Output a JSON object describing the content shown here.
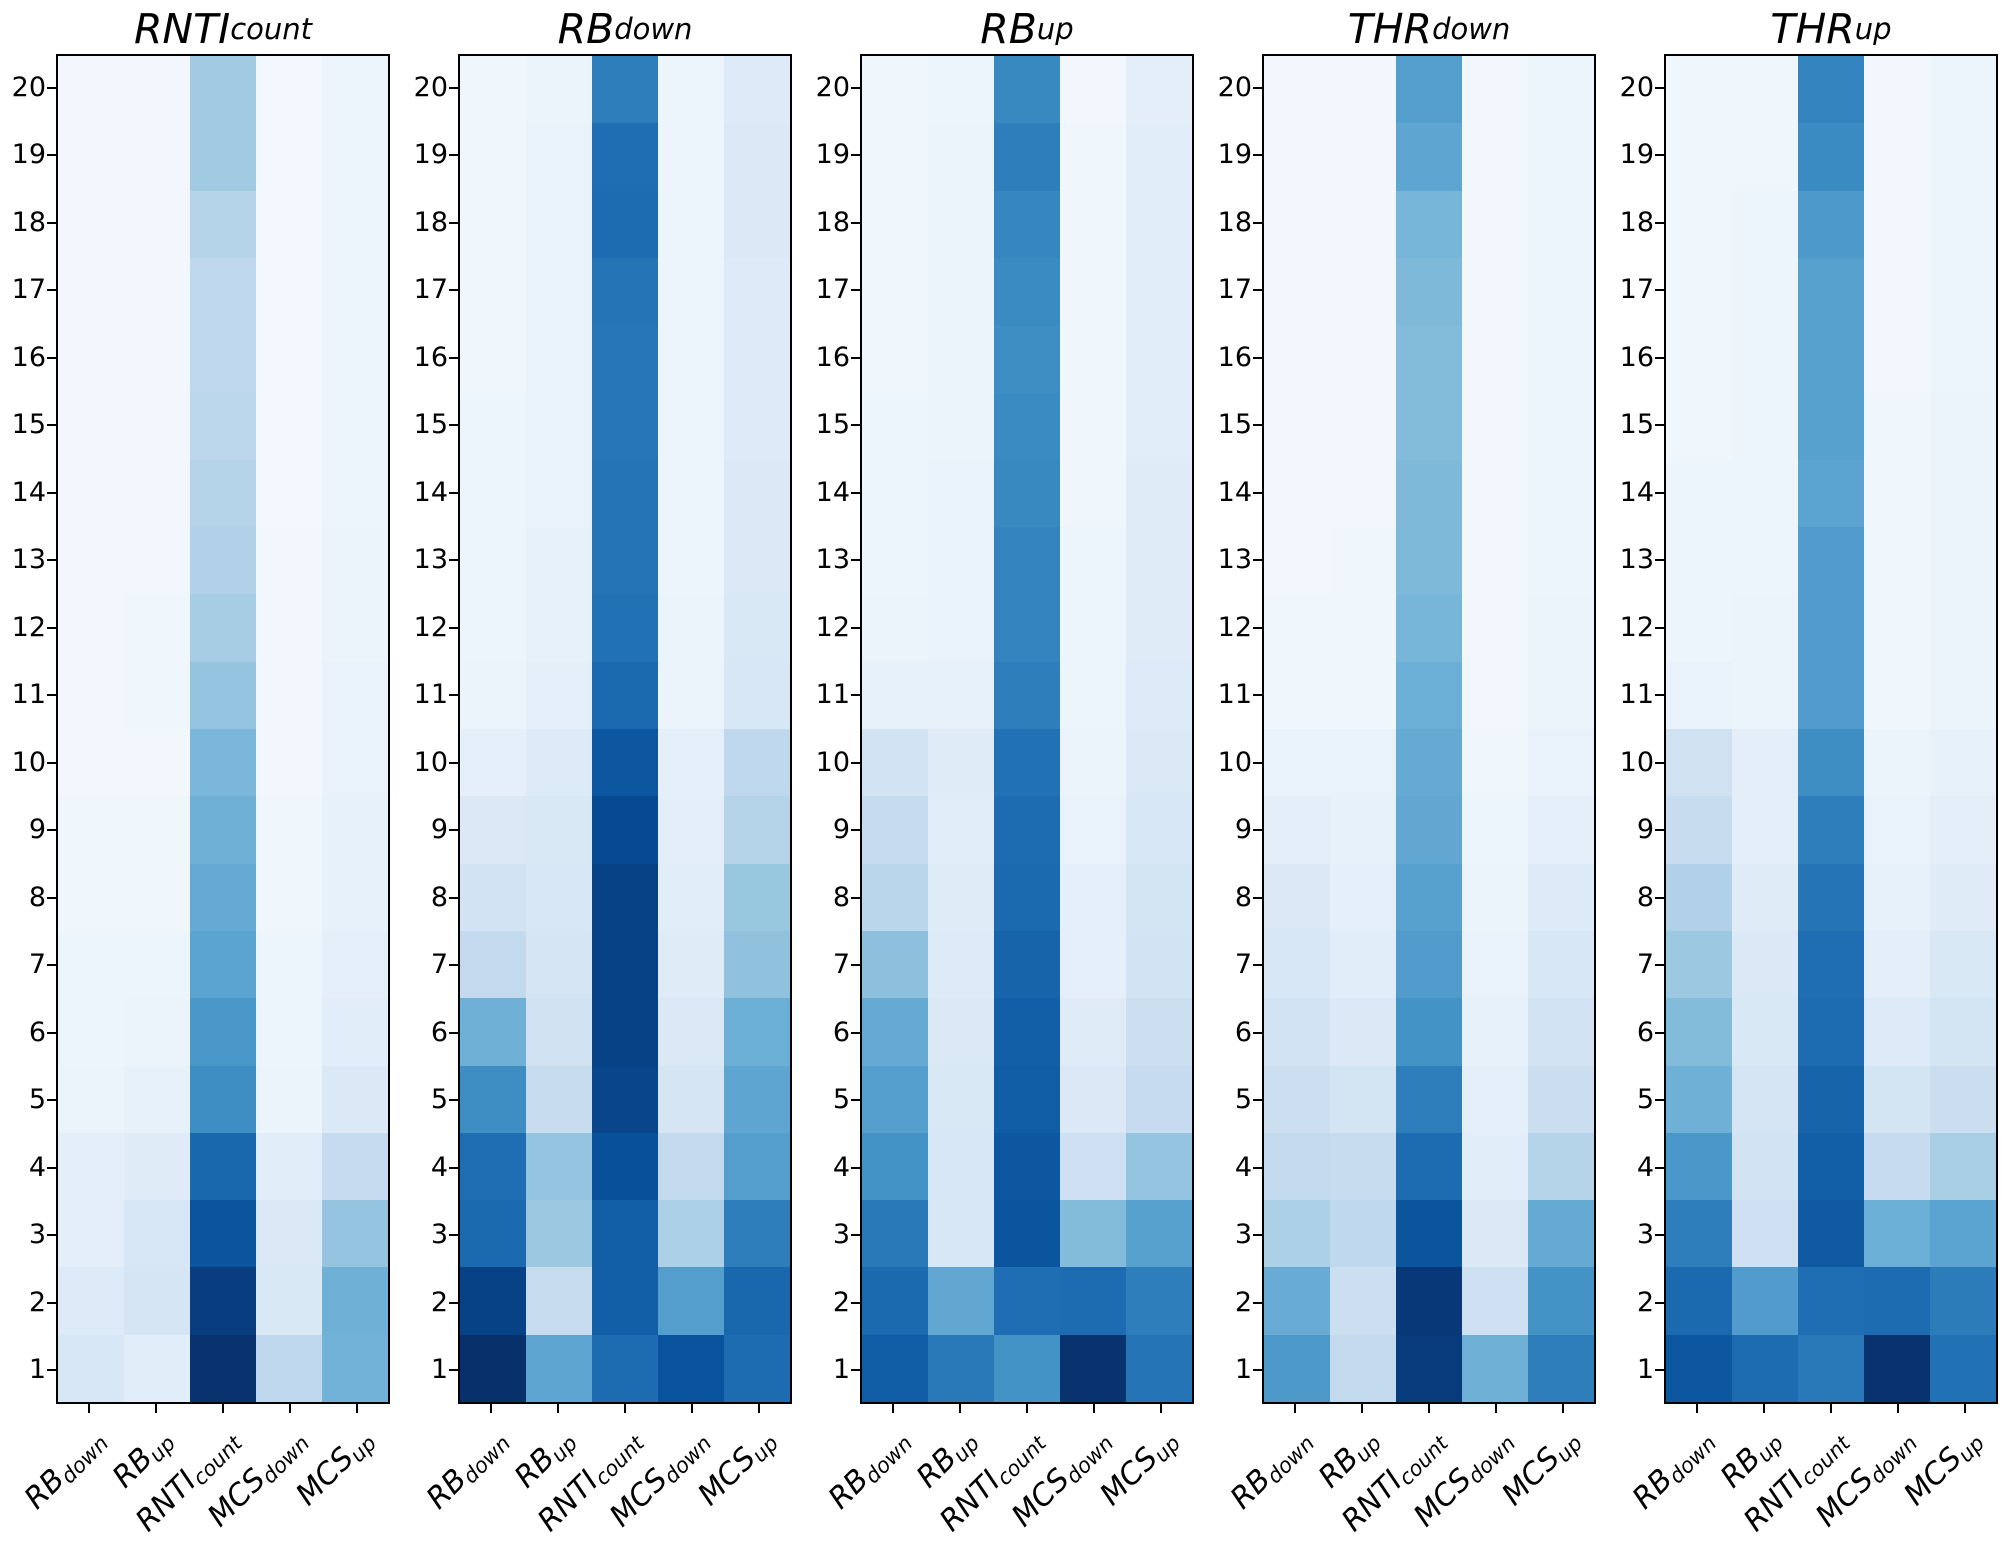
{
  "chart_data": {
    "type": "heatmap",
    "colormap": "Blues",
    "value_range": [
      0,
      1
    ],
    "grid": "off",
    "legend": "none",
    "y_axis_label": "",
    "x_axis_label": "",
    "y_categories": [
      20,
      19,
      18,
      17,
      16,
      15,
      14,
      13,
      12,
      11,
      10,
      9,
      8,
      7,
      6,
      5,
      4,
      3,
      2,
      1
    ],
    "x_categories": [
      {
        "main": "RB",
        "sub": "down"
      },
      {
        "main": "RB",
        "sub": "up"
      },
      {
        "main": "RNTI",
        "sub": "count"
      },
      {
        "main": "MCS",
        "sub": "down"
      },
      {
        "main": "MCS",
        "sub": "up"
      }
    ],
    "panels": [
      {
        "title": {
          "main": "RNTI",
          "sub": "count"
        },
        "rows": [
          [
            0.03,
            0.03,
            0.37,
            0.02,
            0.05
          ],
          [
            0.03,
            0.03,
            0.37,
            0.02,
            0.05
          ],
          [
            0.03,
            0.03,
            0.3,
            0.02,
            0.05
          ],
          [
            0.03,
            0.03,
            0.27,
            0.02,
            0.05
          ],
          [
            0.03,
            0.03,
            0.27,
            0.02,
            0.05
          ],
          [
            0.03,
            0.03,
            0.28,
            0.02,
            0.05
          ],
          [
            0.03,
            0.03,
            0.3,
            0.02,
            0.05
          ],
          [
            0.03,
            0.03,
            0.32,
            0.03,
            0.06
          ],
          [
            0.03,
            0.04,
            0.35,
            0.03,
            0.06
          ],
          [
            0.03,
            0.04,
            0.4,
            0.03,
            0.07
          ],
          [
            0.03,
            0.03,
            0.46,
            0.03,
            0.07
          ],
          [
            0.04,
            0.04,
            0.49,
            0.04,
            0.08
          ],
          [
            0.04,
            0.04,
            0.52,
            0.04,
            0.08
          ],
          [
            0.05,
            0.05,
            0.55,
            0.05,
            0.09
          ],
          [
            0.05,
            0.06,
            0.6,
            0.05,
            0.11
          ],
          [
            0.06,
            0.08,
            0.64,
            0.06,
            0.14
          ],
          [
            0.1,
            0.12,
            0.79,
            0.11,
            0.25
          ],
          [
            0.1,
            0.16,
            0.86,
            0.14,
            0.4
          ],
          [
            0.13,
            0.17,
            0.95,
            0.15,
            0.49
          ],
          [
            0.16,
            0.11,
            0.99,
            0.27,
            0.48
          ]
        ]
      },
      {
        "title": {
          "main": "RB",
          "sub": "down"
        },
        "rows": [
          [
            0.04,
            0.06,
            0.7,
            0.05,
            0.13
          ],
          [
            0.04,
            0.07,
            0.76,
            0.05,
            0.14
          ],
          [
            0.04,
            0.07,
            0.77,
            0.05,
            0.14
          ],
          [
            0.04,
            0.07,
            0.74,
            0.05,
            0.13
          ],
          [
            0.04,
            0.07,
            0.73,
            0.05,
            0.13
          ],
          [
            0.05,
            0.07,
            0.73,
            0.05,
            0.13
          ],
          [
            0.05,
            0.07,
            0.74,
            0.05,
            0.14
          ],
          [
            0.05,
            0.08,
            0.74,
            0.05,
            0.14
          ],
          [
            0.05,
            0.08,
            0.75,
            0.06,
            0.15
          ],
          [
            0.06,
            0.09,
            0.78,
            0.06,
            0.16
          ],
          [
            0.09,
            0.13,
            0.85,
            0.09,
            0.27
          ],
          [
            0.14,
            0.15,
            0.9,
            0.1,
            0.3
          ],
          [
            0.19,
            0.16,
            0.93,
            0.11,
            0.39
          ],
          [
            0.26,
            0.17,
            0.93,
            0.12,
            0.41
          ],
          [
            0.49,
            0.2,
            0.93,
            0.14,
            0.5
          ],
          [
            0.64,
            0.24,
            0.92,
            0.17,
            0.54
          ],
          [
            0.76,
            0.4,
            0.88,
            0.26,
            0.57
          ],
          [
            0.78,
            0.38,
            0.82,
            0.33,
            0.7
          ],
          [
            0.93,
            0.24,
            0.82,
            0.57,
            0.79
          ],
          [
            1.0,
            0.54,
            0.77,
            0.87,
            0.77
          ]
        ]
      },
      {
        "title": {
          "main": "RB",
          "sub": "up"
        },
        "rows": [
          [
            0.04,
            0.05,
            0.66,
            0.03,
            0.1
          ],
          [
            0.04,
            0.06,
            0.7,
            0.04,
            0.11
          ],
          [
            0.04,
            0.06,
            0.67,
            0.04,
            0.11
          ],
          [
            0.04,
            0.06,
            0.65,
            0.04,
            0.11
          ],
          [
            0.04,
            0.06,
            0.64,
            0.04,
            0.11
          ],
          [
            0.05,
            0.06,
            0.65,
            0.04,
            0.11
          ],
          [
            0.05,
            0.07,
            0.66,
            0.04,
            0.12
          ],
          [
            0.05,
            0.07,
            0.68,
            0.05,
            0.12
          ],
          [
            0.06,
            0.07,
            0.68,
            0.05,
            0.12
          ],
          [
            0.08,
            0.08,
            0.7,
            0.05,
            0.13
          ],
          [
            0.19,
            0.12,
            0.75,
            0.06,
            0.14
          ],
          [
            0.25,
            0.11,
            0.77,
            0.07,
            0.16
          ],
          [
            0.29,
            0.12,
            0.78,
            0.09,
            0.18
          ],
          [
            0.42,
            0.13,
            0.8,
            0.09,
            0.19
          ],
          [
            0.52,
            0.14,
            0.82,
            0.12,
            0.22
          ],
          [
            0.57,
            0.15,
            0.83,
            0.14,
            0.25
          ],
          [
            0.62,
            0.16,
            0.85,
            0.21,
            0.4
          ],
          [
            0.72,
            0.16,
            0.86,
            0.44,
            0.56
          ],
          [
            0.78,
            0.53,
            0.76,
            0.77,
            0.7
          ],
          [
            0.83,
            0.72,
            0.62,
            0.99,
            0.74
          ]
        ]
      },
      {
        "title": {
          "main": "THR",
          "sub": "down"
        },
        "rows": [
          [
            0.03,
            0.03,
            0.57,
            0.03,
            0.05
          ],
          [
            0.03,
            0.03,
            0.54,
            0.03,
            0.05
          ],
          [
            0.03,
            0.03,
            0.47,
            0.03,
            0.05
          ],
          [
            0.03,
            0.03,
            0.45,
            0.03,
            0.05
          ],
          [
            0.03,
            0.03,
            0.44,
            0.03,
            0.05
          ],
          [
            0.03,
            0.03,
            0.44,
            0.03,
            0.05
          ],
          [
            0.03,
            0.03,
            0.45,
            0.03,
            0.05
          ],
          [
            0.03,
            0.04,
            0.45,
            0.03,
            0.05
          ],
          [
            0.04,
            0.04,
            0.47,
            0.03,
            0.06
          ],
          [
            0.04,
            0.04,
            0.5,
            0.03,
            0.06
          ],
          [
            0.07,
            0.07,
            0.52,
            0.04,
            0.07
          ],
          [
            0.1,
            0.08,
            0.53,
            0.05,
            0.09
          ],
          [
            0.14,
            0.09,
            0.56,
            0.06,
            0.13
          ],
          [
            0.16,
            0.11,
            0.58,
            0.07,
            0.16
          ],
          [
            0.19,
            0.14,
            0.62,
            0.08,
            0.19
          ],
          [
            0.22,
            0.18,
            0.7,
            0.09,
            0.23
          ],
          [
            0.26,
            0.24,
            0.77,
            0.11,
            0.3
          ],
          [
            0.33,
            0.27,
            0.86,
            0.14,
            0.52
          ],
          [
            0.51,
            0.22,
            0.97,
            0.21,
            0.62
          ],
          [
            0.59,
            0.26,
            0.96,
            0.49,
            0.7
          ]
        ]
      },
      {
        "title": {
          "main": "THR",
          "sub": "up"
        },
        "rows": [
          [
            0.04,
            0.04,
            0.68,
            0.03,
            0.05
          ],
          [
            0.04,
            0.04,
            0.65,
            0.03,
            0.05
          ],
          [
            0.04,
            0.05,
            0.59,
            0.03,
            0.05
          ],
          [
            0.04,
            0.05,
            0.56,
            0.03,
            0.05
          ],
          [
            0.04,
            0.05,
            0.56,
            0.03,
            0.05
          ],
          [
            0.04,
            0.05,
            0.56,
            0.04,
            0.06
          ],
          [
            0.05,
            0.05,
            0.55,
            0.04,
            0.06
          ],
          [
            0.05,
            0.05,
            0.58,
            0.04,
            0.06
          ],
          [
            0.05,
            0.06,
            0.58,
            0.04,
            0.06
          ],
          [
            0.07,
            0.06,
            0.58,
            0.04,
            0.06
          ],
          [
            0.2,
            0.1,
            0.64,
            0.06,
            0.08
          ],
          [
            0.24,
            0.1,
            0.7,
            0.07,
            0.1
          ],
          [
            0.32,
            0.12,
            0.74,
            0.08,
            0.12
          ],
          [
            0.38,
            0.14,
            0.76,
            0.1,
            0.15
          ],
          [
            0.44,
            0.15,
            0.77,
            0.13,
            0.18
          ],
          [
            0.49,
            0.17,
            0.8,
            0.18,
            0.23
          ],
          [
            0.6,
            0.19,
            0.82,
            0.25,
            0.34
          ],
          [
            0.7,
            0.21,
            0.84,
            0.5,
            0.55
          ],
          [
            0.78,
            0.58,
            0.76,
            0.77,
            0.71
          ],
          [
            0.85,
            0.77,
            0.72,
            0.99,
            0.75
          ]
        ]
      }
    ]
  }
}
